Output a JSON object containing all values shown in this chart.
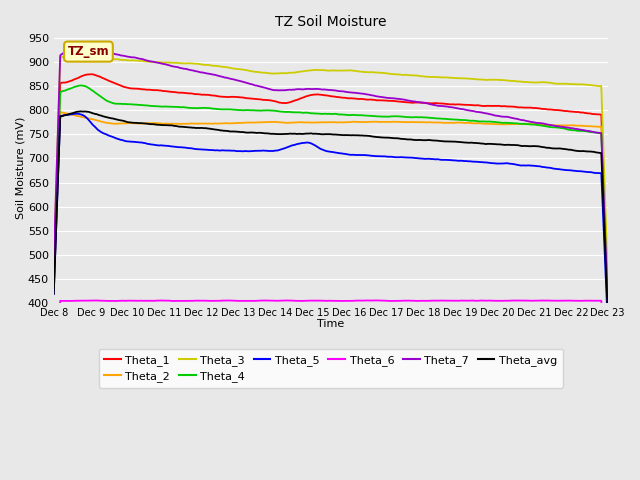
{
  "title": "TZ Soil Moisture",
  "xlabel": "Time",
  "ylabel": "Soil Moisture (mV)",
  "ylim": [
    400,
    960
  ],
  "yticks": [
    400,
    450,
    500,
    550,
    600,
    650,
    700,
    750,
    800,
    850,
    900,
    950
  ],
  "x_labels": [
    "Dec 8",
    "Dec 9",
    "Dec 10",
    "Dec 11",
    "Dec 12",
    "Dec 13",
    "Dec 14",
    "Dec 15",
    "Dec 16",
    "Dec 17",
    "Dec 18",
    "Dec 19",
    "Dec 20",
    "Dec 21",
    "Dec 22",
    "Dec 23"
  ],
  "bg_color": "#e8e8e8",
  "grid_color": "#ffffff",
  "legend_face": "#ffffff",
  "tzbox_face": "#ffffcc",
  "tzbox_edge": "#ccaa00",
  "tzbox_text": "#8b0000",
  "colors": {
    "Theta_1": "#ff0000",
    "Theta_2": "#ffa500",
    "Theta_3": "#cccc00",
    "Theta_4": "#00cc00",
    "Theta_5": "#0000ff",
    "Theta_6": "#ff00ff",
    "Theta_7": "#9900cc",
    "Theta_avg": "#000000"
  }
}
